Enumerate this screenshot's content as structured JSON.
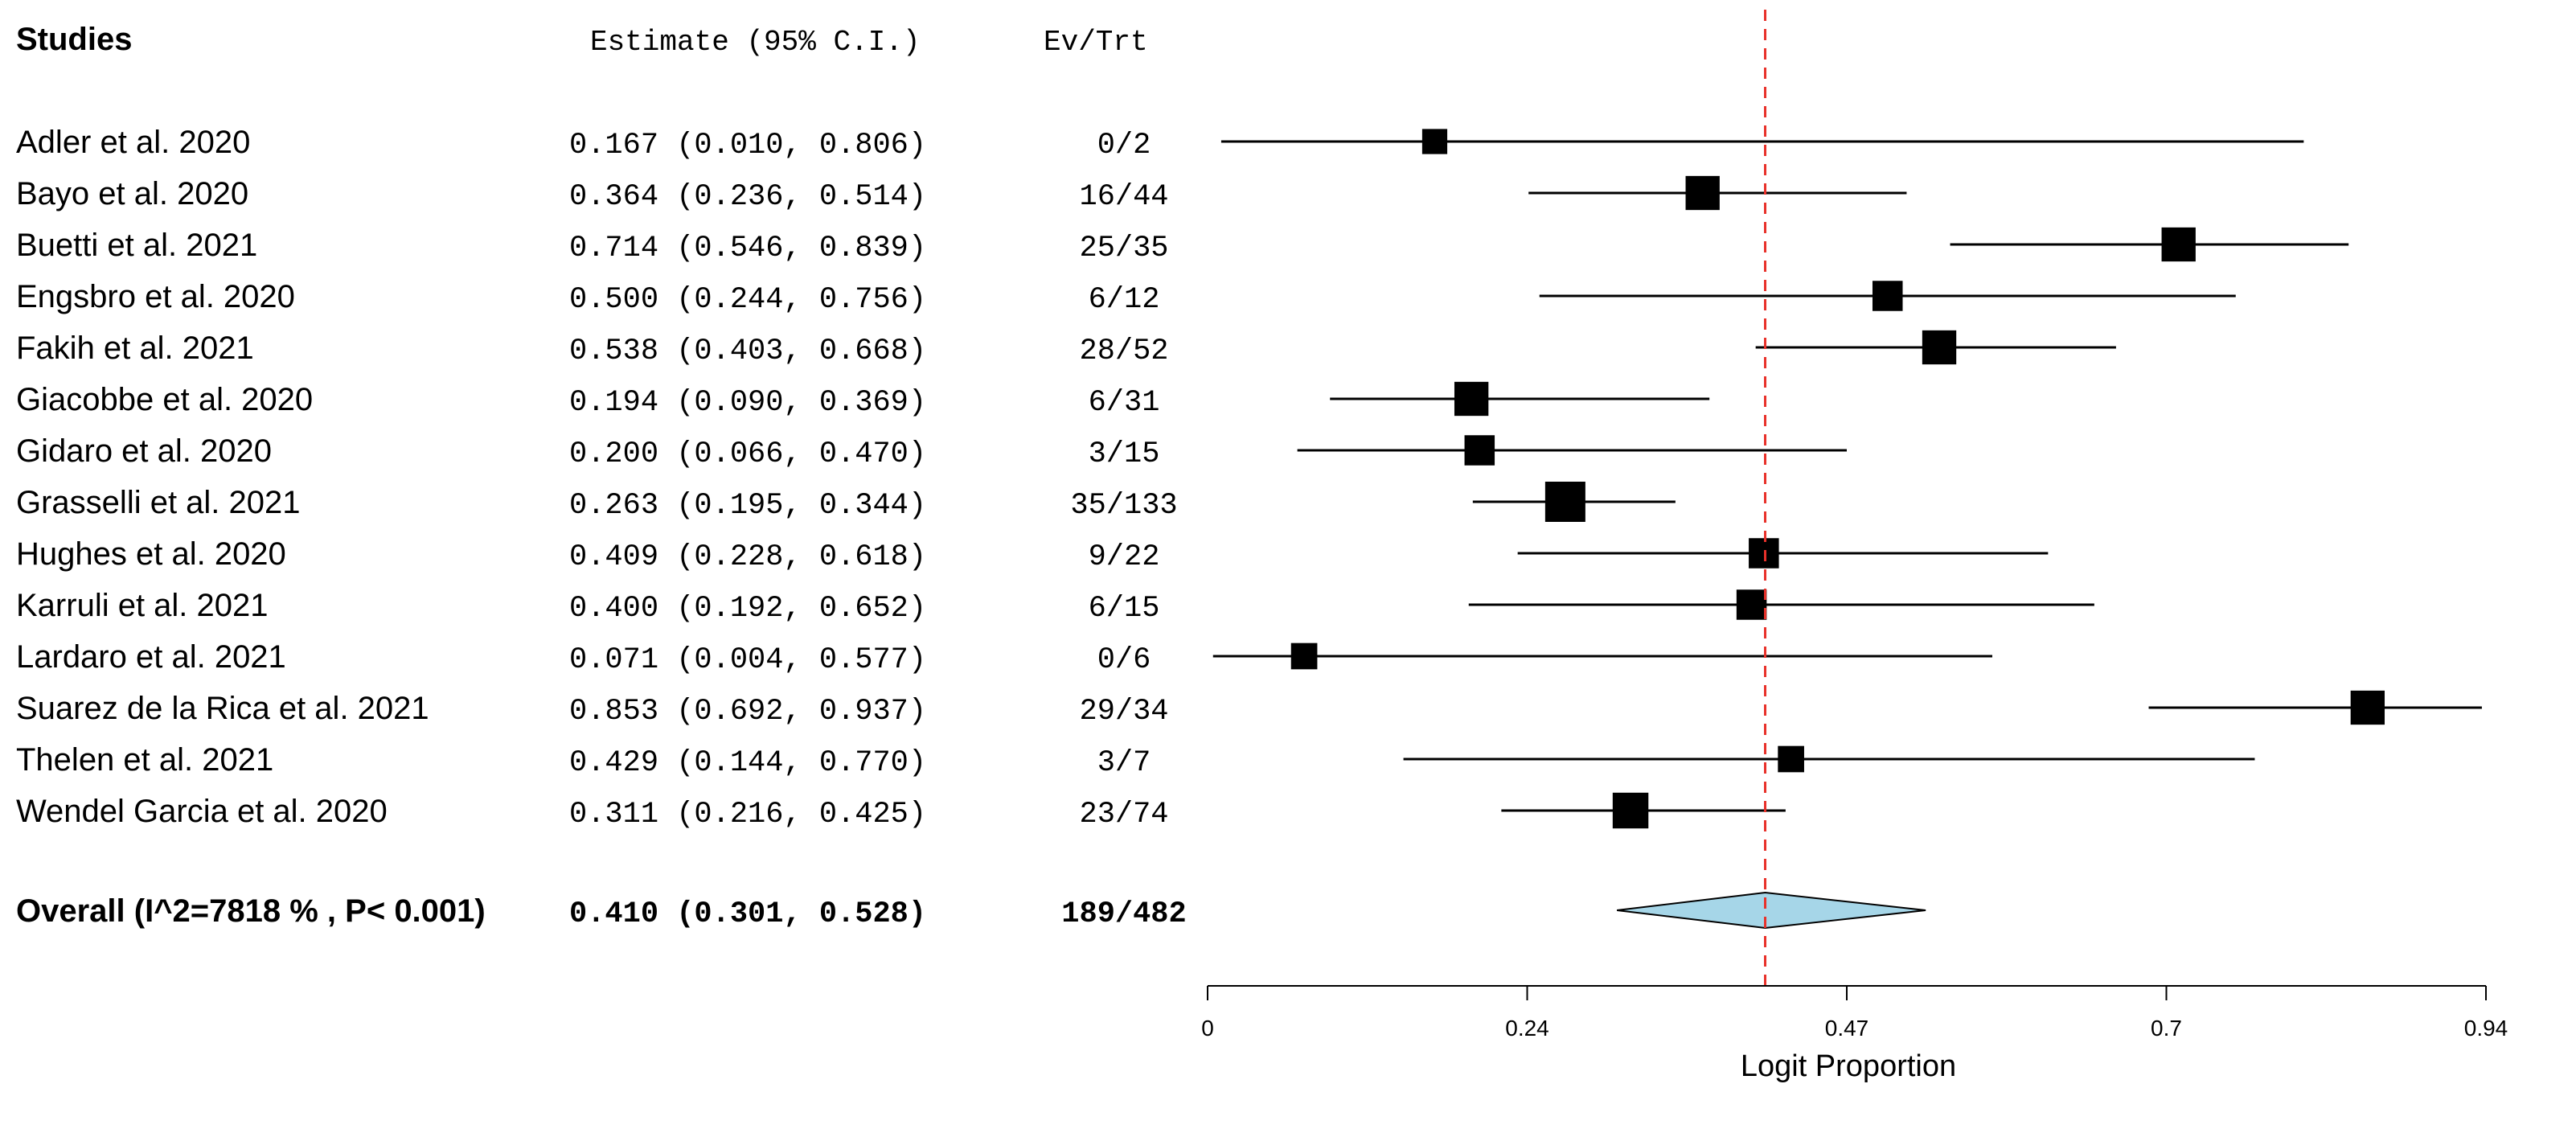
{
  "headers": {
    "studies": "Studies",
    "estimate": "Estimate (95% C.I.)",
    "events": "Ev/Trt"
  },
  "chart_data": {
    "type": "forest",
    "xlabel": "Logit Proportion",
    "xticks": [
      "0",
      "0.24",
      "0.47",
      "0.7",
      "0.94"
    ],
    "xlim": [
      0,
      0.94
    ],
    "reference_line": 0.41,
    "studies": [
      {
        "name": "Adler et al. 2020",
        "estimate": 0.167,
        "lower": 0.01,
        "upper": 0.806,
        "ci_text": "0.167 (0.010, 0.806)",
        "events": "0/2",
        "weight": 1
      },
      {
        "name": "Bayo et al. 2020",
        "estimate": 0.364,
        "lower": 0.236,
        "upper": 0.514,
        "ci_text": "0.364 (0.236, 0.514)",
        "events": "16/44",
        "weight": 3
      },
      {
        "name": "Buetti et al. 2021",
        "estimate": 0.714,
        "lower": 0.546,
        "upper": 0.839,
        "ci_text": "0.714 (0.546, 0.839)",
        "events": "25/35",
        "weight": 3
      },
      {
        "name": "Engsbro et al. 2020",
        "estimate": 0.5,
        "lower": 0.244,
        "upper": 0.756,
        "ci_text": "0.500 (0.244, 0.756)",
        "events": "6/12",
        "weight": 2
      },
      {
        "name": "Fakih et al. 2021",
        "estimate": 0.538,
        "lower": 0.403,
        "upper": 0.668,
        "ci_text": "0.538 (0.403, 0.668)",
        "events": "28/52",
        "weight": 3
      },
      {
        "name": "Giacobbe et al. 2020",
        "estimate": 0.194,
        "lower": 0.09,
        "upper": 0.369,
        "ci_text": "0.194 (0.090, 0.369)",
        "events": "6/31",
        "weight": 3
      },
      {
        "name": "Gidaro et al. 2020",
        "estimate": 0.2,
        "lower": 0.066,
        "upper": 0.47,
        "ci_text": "0.200 (0.066, 0.470)",
        "events": "3/15",
        "weight": 2
      },
      {
        "name": "Grasselli et al. 2021",
        "estimate": 0.263,
        "lower": 0.195,
        "upper": 0.344,
        "ci_text": "0.263 (0.195, 0.344)",
        "events": "35/133",
        "weight": 5
      },
      {
        "name": "Hughes et al. 2020",
        "estimate": 0.409,
        "lower": 0.228,
        "upper": 0.618,
        "ci_text": "0.409 (0.228, 0.618)",
        "events": "9/22",
        "weight": 2
      },
      {
        "name": "Karruli et al. 2021",
        "estimate": 0.4,
        "lower": 0.192,
        "upper": 0.652,
        "ci_text": "0.400 (0.192, 0.652)",
        "events": "6/15",
        "weight": 2
      },
      {
        "name": "Lardaro et al. 2021",
        "estimate": 0.071,
        "lower": 0.004,
        "upper": 0.577,
        "ci_text": "0.071 (0.004, 0.577)",
        "events": "0/6",
        "weight": 1.2
      },
      {
        "name": "Suarez de la Rica et al. 2021",
        "estimate": 0.853,
        "lower": 0.692,
        "upper": 0.937,
        "ci_text": "0.853 (0.692, 0.937)",
        "events": "29/34",
        "weight": 3
      },
      {
        "name": "Thelen et al. 2021",
        "estimate": 0.429,
        "lower": 0.144,
        "upper": 0.77,
        "ci_text": "0.429 (0.144, 0.770)",
        "events": "3/7",
        "weight": 1.2
      },
      {
        "name": "Wendel Garcia et al. 2020",
        "estimate": 0.311,
        "lower": 0.216,
        "upper": 0.425,
        "ci_text": "0.311 (0.216, 0.425)",
        "events": "23/74",
        "weight": 3.5
      }
    ],
    "overall": {
      "label": "Overall (I^2=7818 % , P< 0.001)",
      "estimate": 0.41,
      "lower": 0.301,
      "upper": 0.528,
      "ci_text": "0.410 (0.301, 0.528)",
      "events": "189/482"
    },
    "colors": {
      "reference_line": "#e8312a",
      "diamond_fill": "#a6d6e8",
      "marker": "#000000"
    }
  }
}
